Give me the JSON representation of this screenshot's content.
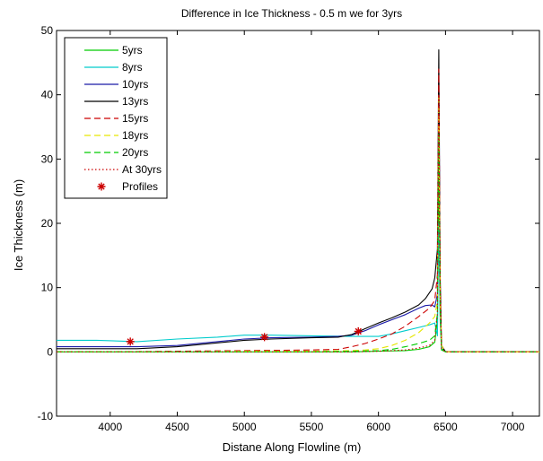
{
  "chart_data": {
    "type": "line",
    "title": "Difference in Ice Thickness - 0.5 m we for 3yrs",
    "xlabel": "Distane Along Flowline (m)",
    "ylabel": "Ice Thickness (m)",
    "xlim": [
      3600,
      7200
    ],
    "ylim": [
      -10,
      50
    ],
    "xticks": [
      4000,
      4500,
      5000,
      5500,
      6000,
      6500,
      7000
    ],
    "yticks": [
      -10,
      0,
      10,
      20,
      30,
      40,
      50
    ],
    "grid": false,
    "legend_position": "top-left",
    "series": [
      {
        "name": "5yrs",
        "color": "#00cc00",
        "dash": "solid",
        "x": [
          3600,
          4000,
          4500,
          5000,
          5500,
          5800,
          6000,
          6200,
          6300,
          6380,
          6420,
          6440,
          6450,
          6460,
          6470,
          6500,
          6520,
          7200
        ],
        "y": [
          0,
          0,
          0,
          0,
          0,
          0,
          0.1,
          0.2,
          0.4,
          0.8,
          1.5,
          5,
          30,
          6,
          0.3,
          0,
          0,
          0
        ]
      },
      {
        "name": "8yrs",
        "color": "#00cccc",
        "dash": "solid",
        "x": [
          3600,
          3900,
          4200,
          4500,
          4800,
          5000,
          5200,
          5500,
          5800,
          6000,
          6100,
          6200,
          6300,
          6380,
          6420,
          6440,
          6450,
          6460,
          6470,
          6500,
          6520,
          7200
        ],
        "y": [
          1.8,
          1.8,
          1.6,
          2.0,
          2.3,
          2.6,
          2.6,
          2.5,
          2.4,
          2.4,
          2.8,
          3.3,
          3.8,
          4.2,
          4.5,
          2.5,
          20,
          5,
          0.5,
          0,
          0,
          0
        ]
      },
      {
        "name": "10yrs",
        "color": "#1a1aa8",
        "dash": "solid",
        "x": [
          3600,
          4000,
          4200,
          4500,
          5000,
          5200,
          5500,
          5700,
          5800,
          5900,
          6000,
          6100,
          6200,
          6300,
          6350,
          6400,
          6420,
          6440,
          6450,
          6460,
          6470,
          6500,
          6520,
          7200
        ],
        "y": [
          0.8,
          0.8,
          0.8,
          1.0,
          2.0,
          2.2,
          2.3,
          2.4,
          2.6,
          3.3,
          4.2,
          5.0,
          5.8,
          6.8,
          7.2,
          7.3,
          7.0,
          9.0,
          42,
          10,
          1,
          0,
          0,
          0
        ]
      },
      {
        "name": "13yrs",
        "color": "#000000",
        "dash": "solid",
        "x": [
          3600,
          4000,
          4200,
          4500,
          5000,
          5200,
          5500,
          5700,
          5800,
          5900,
          6000,
          6100,
          6200,
          6300,
          6350,
          6400,
          6420,
          6440,
          6450,
          6460,
          6470,
          6500,
          6520,
          7200
        ],
        "y": [
          0.5,
          0.5,
          0.5,
          0.8,
          1.8,
          2.0,
          2.2,
          2.3,
          2.7,
          3.6,
          4.5,
          5.3,
          6.2,
          7.3,
          8.3,
          9.8,
          11.5,
          16,
          47,
          12,
          1,
          0,
          0,
          0
        ]
      },
      {
        "name": "15yrs",
        "color": "#cc0000",
        "dash": "dashed",
        "x": [
          3600,
          4000,
          4500,
          5000,
          5500,
          5700,
          5800,
          5900,
          6000,
          6100,
          6200,
          6300,
          6380,
          6420,
          6440,
          6450,
          6460,
          6470,
          6500,
          6520,
          7200
        ],
        "y": [
          0,
          0,
          0.1,
          0.2,
          0.3,
          0.4,
          0.8,
          1.3,
          2.0,
          2.8,
          4.0,
          5.5,
          6.8,
          8.0,
          12,
          44,
          10,
          1,
          0,
          0,
          0
        ]
      },
      {
        "name": "18yrs",
        "color": "#e6e600",
        "dash": "dashed",
        "x": [
          3600,
          4000,
          4500,
          5000,
          5500,
          5800,
          5900,
          6000,
          6100,
          6200,
          6300,
          6380,
          6420,
          6440,
          6450,
          6460,
          6470,
          6500,
          6520,
          7200
        ],
        "y": [
          0,
          0,
          0,
          0.1,
          0.1,
          0.2,
          0.3,
          0.5,
          1.0,
          1.8,
          3.0,
          4.5,
          5.5,
          8,
          40,
          8,
          1,
          0,
          0,
          0
        ]
      },
      {
        "name": "20yrs",
        "color": "#00cc00",
        "dash": "dashed",
        "x": [
          3600,
          4000,
          4500,
          5000,
          5500,
          5800,
          6000,
          6100,
          6200,
          6300,
          6380,
          6420,
          6440,
          6450,
          6460,
          6470,
          6500,
          6520,
          7200
        ],
        "y": [
          0,
          0,
          0,
          0,
          0,
          0.1,
          0.2,
          0.4,
          0.8,
          1.3,
          1.8,
          2.5,
          6,
          34,
          7,
          0.5,
          0,
          0,
          0
        ]
      },
      {
        "name": "At 30yrs",
        "color": "#cc0000",
        "dash": "dotted",
        "x": [
          3600,
          4000,
          4500,
          5000,
          5500,
          5800,
          6000,
          6200,
          6300,
          6380,
          6420,
          6440,
          6450,
          6460,
          6470,
          6500,
          6520,
          7200
        ],
        "y": [
          0,
          0,
          0,
          0,
          0,
          0,
          0.1,
          0.3,
          0.6,
          1.0,
          1.8,
          6,
          40,
          8,
          0.5,
          0,
          0,
          0
        ]
      },
      {
        "name": "Profiles",
        "color": "#cc0000",
        "marker": "star",
        "x": [
          4150,
          5150,
          5850
        ],
        "y": [
          1.6,
          2.3,
          3.2
        ]
      }
    ]
  }
}
